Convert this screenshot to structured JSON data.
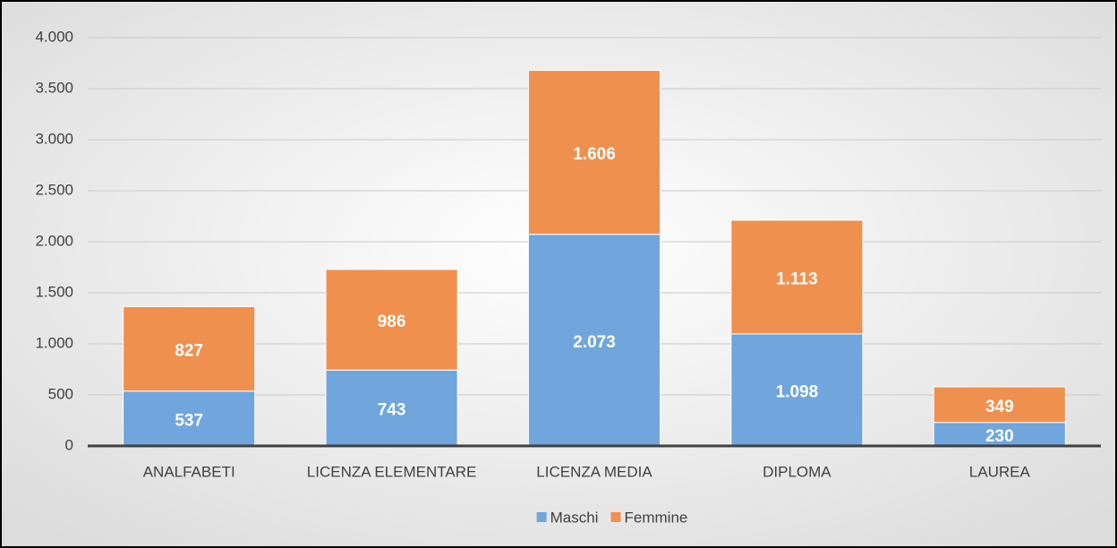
{
  "chart_data": {
    "type": "stacked_bar",
    "categories": [
      "ANALFABETI",
      "LICENZA ELEMENTARE",
      "LICENZA MEDIA",
      "DIPLOMA",
      "LAUREA"
    ],
    "series": [
      {
        "name": "Maschi",
        "color": "#70a6db",
        "values": [
          537,
          743,
          2073,
          1098,
          230
        ],
        "value_labels": [
          "537",
          "743",
          "2.073",
          "1.098",
          "230"
        ]
      },
      {
        "name": "Femmine",
        "color": "#f0904f",
        "values": [
          827,
          986,
          1606,
          1113,
          349
        ],
        "value_labels": [
          "827",
          "986",
          "1.606",
          "1.113",
          "349"
        ]
      }
    ],
    "ylim": [
      0,
      4000
    ],
    "yticks": [
      0,
      500,
      {
        "value": 1000,
        "label": "1.000"
      },
      {
        "value": 1500,
        "label": "1.500"
      },
      {
        "value": 2000,
        "label": "2.000"
      },
      {
        "value": 2500,
        "label": "2.500"
      },
      {
        "value": 3000,
        "label": "3.000"
      },
      {
        "value": 3500,
        "label": "3.500"
      },
      {
        "value": 4000,
        "label": "4.000"
      }
    ],
    "grid": true,
    "legend": "bottom"
  }
}
